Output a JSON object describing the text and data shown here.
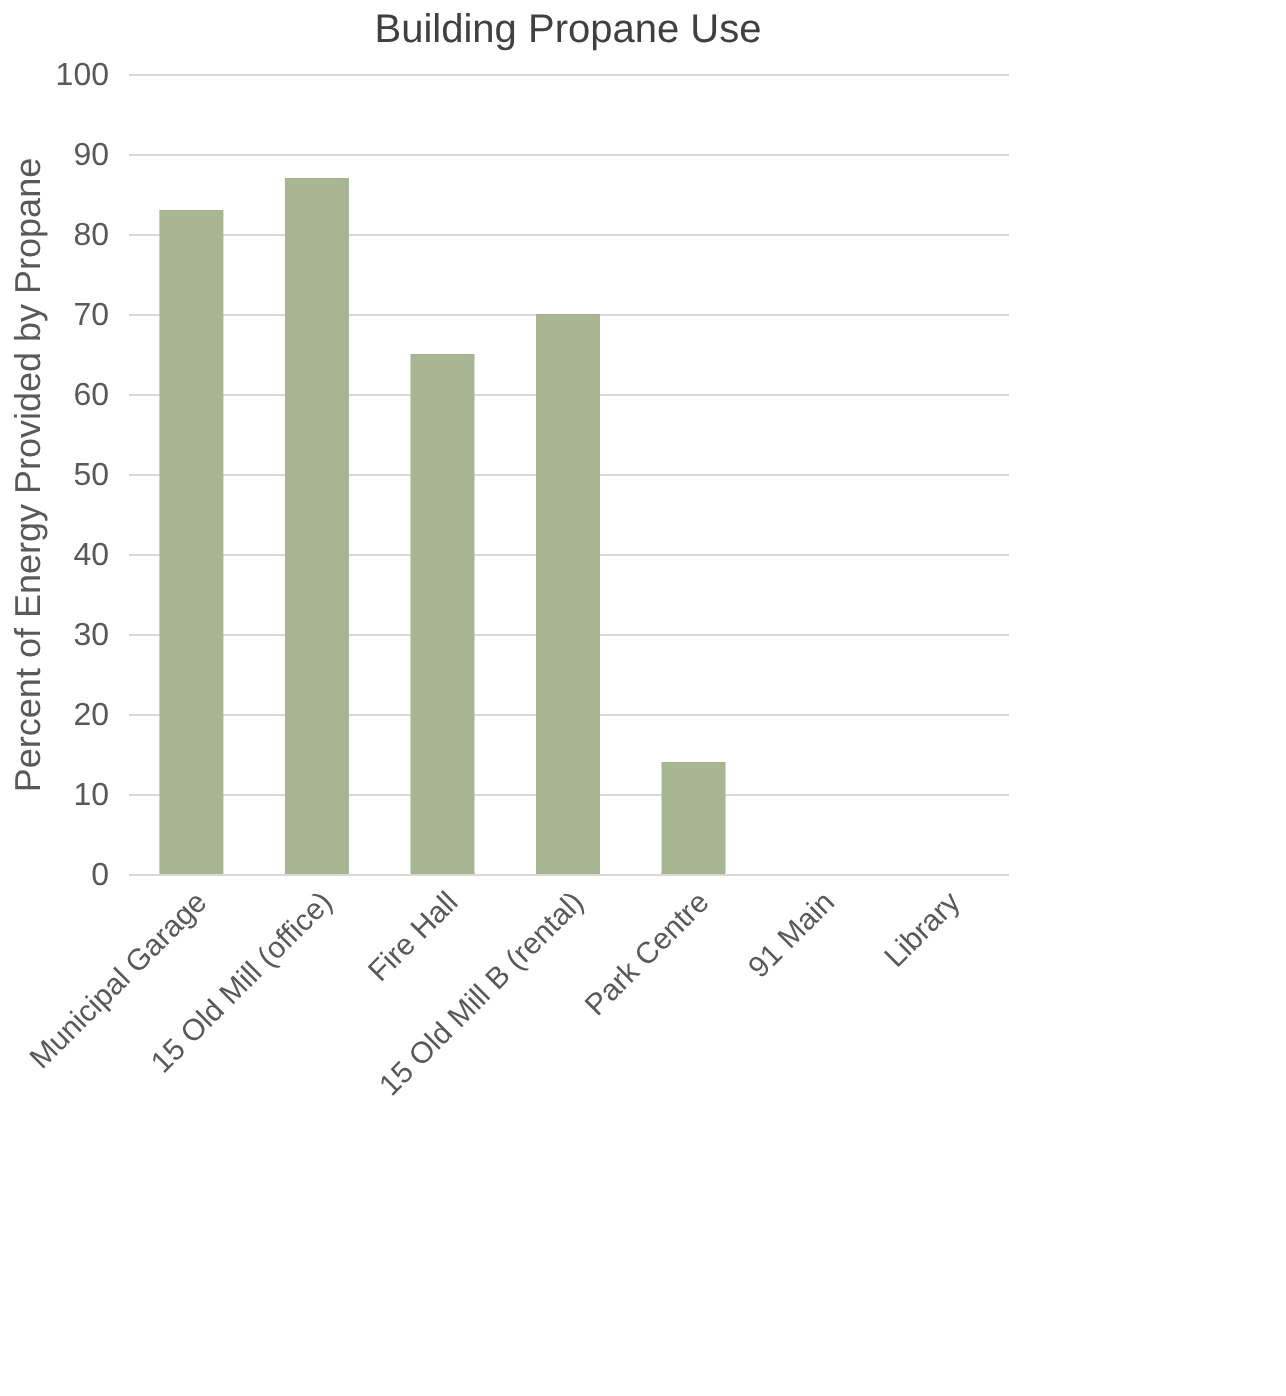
{
  "chart_data": {
    "type": "bar",
    "title": "Building Propane Use",
    "ylabel": "Percent of Energy Provided by Propane",
    "categories": [
      "Municipal Garage",
      "15 Old Mill (office)",
      "Fire Hall",
      "15 Old Mill B (rental)",
      "Park Centre",
      "91 Main",
      "Library"
    ],
    "values": [
      83,
      87,
      65,
      70,
      14,
      0,
      0
    ],
    "color": "#a7b592",
    "ylim": [
      0,
      100
    ],
    "yticks": [
      0,
      10,
      20,
      30,
      40,
      50,
      60,
      70,
      80,
      90,
      100
    ],
    "grid": "y"
  }
}
